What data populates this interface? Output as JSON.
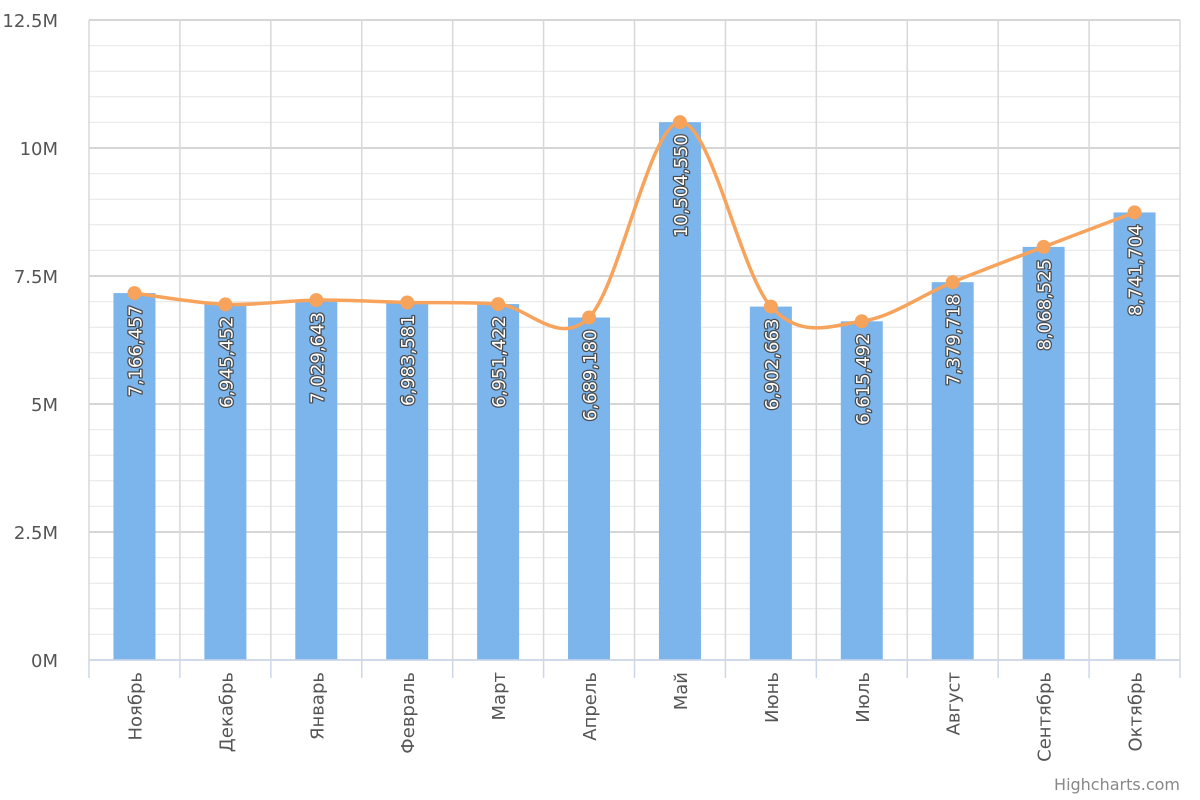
{
  "chart_data": {
    "type": "bar",
    "categories": [
      "Ноябрь",
      "Декабрь",
      "Январь",
      "Февраль",
      "Март",
      "Апрель",
      "Май",
      "Июнь",
      "Июль",
      "Август",
      "Сентябрь",
      "Октябрь"
    ],
    "series": [
      {
        "type": "bar",
        "values": [
          7166457,
          6945452,
          7029643,
          6983581,
          6951422,
          6689180,
          10504550,
          6902663,
          6615492,
          7379718,
          8068525,
          8741704
        ],
        "data_labels": [
          "7,166,457",
          "6,945,452",
          "7,029,643",
          "6,983,581",
          "6,951,422",
          "6,689,180",
          "10,504,550",
          "6,902,663",
          "6,615,492",
          "7,379,718",
          "8,068,525",
          "8,741,704"
        ],
        "color": "#7cb5ec"
      },
      {
        "type": "line",
        "smooth": true,
        "values": [
          7166457,
          6945452,
          7029643,
          6983581,
          6951422,
          6689180,
          10504550,
          6902663,
          6615492,
          7379718,
          8068525,
          8741704
        ],
        "color": "#f7a35c"
      }
    ],
    "title": "",
    "xlabel": "",
    "ylabel": "",
    "ylim": [
      0,
      12500000
    ],
    "yticks": [
      0,
      2500000,
      5000000,
      7500000,
      10000000,
      12500000
    ],
    "ytick_labels": [
      "0M",
      "2.5M",
      "5M",
      "7.5M",
      "10M",
      "12.5M"
    ],
    "minor_grid_step": 500000,
    "grid": true,
    "legend": "none",
    "credits": "Highcharts.com"
  }
}
